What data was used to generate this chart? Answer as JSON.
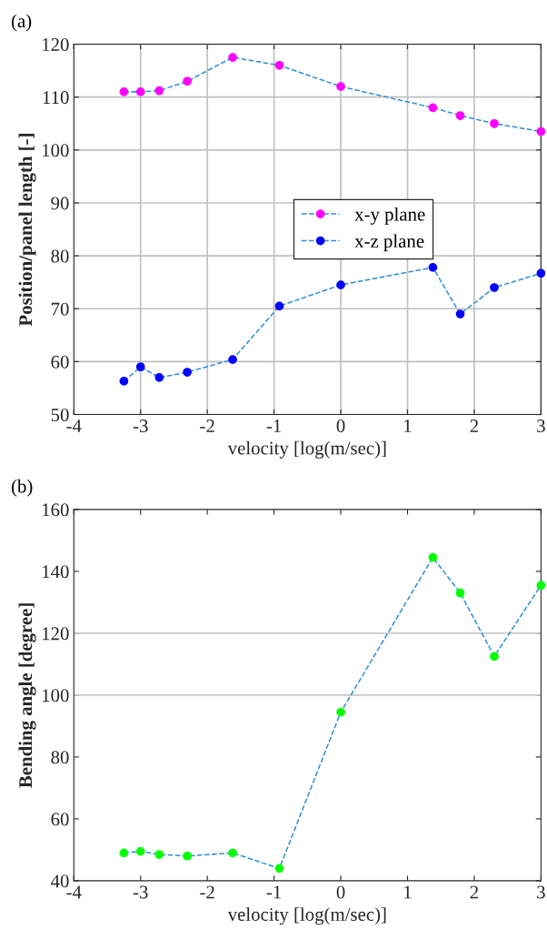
{
  "chart_data": [
    {
      "type": "line",
      "annotations": [
        "(a)"
      ],
      "xlabel": "velocity [log(m/sec)]",
      "ylabel": "Position/panel length [-]",
      "xlim": [
        -4,
        3
      ],
      "xticks": [
        -4,
        -3,
        -2,
        -1,
        0,
        1,
        2,
        3
      ],
      "ylim": [
        50,
        120
      ],
      "yticks": [
        50,
        60,
        70,
        80,
        90,
        100,
        110,
        120
      ],
      "grid": true,
      "legend": "center",
      "marker": "circle",
      "line_style": "dashed",
      "series": [
        {
          "name": "x-y plane",
          "color": "#ff00ff",
          "x": [
            -3.25,
            -3,
            -2.72,
            -2.3,
            -1.62,
            -0.92,
            0,
            1.38,
            1.79,
            2.3,
            3
          ],
          "values": [
            111,
            111,
            111.2,
            113,
            117.5,
            116,
            112,
            108,
            106.5,
            105,
            103.5
          ]
        },
        {
          "name": "x-z plane",
          "color": "#0000ff",
          "x": [
            -3.25,
            -3,
            -2.72,
            -2.3,
            -1.62,
            -0.92,
            0,
            1.38,
            1.79,
            2.3,
            3
          ],
          "values": [
            56.3,
            59,
            57,
            58,
            60.4,
            70.5,
            74.5,
            77.8,
            69,
            74,
            76.7
          ]
        }
      ]
    },
    {
      "type": "line",
      "annotations": [
        "(b)"
      ],
      "xlabel": "velocity [log(m/sec)]",
      "ylabel": "Bending angle [degree]",
      "xlim": [
        -4,
        3
      ],
      "xticks": [
        -4,
        -3,
        -2,
        -1,
        0,
        1,
        2,
        3
      ],
      "ylim": [
        40,
        160
      ],
      "yticks": [
        40,
        60,
        80,
        100,
        120,
        140,
        160
      ],
      "marker": "circle",
      "line_style": "dashed",
      "ref_lines": [
        {
          "axis": "y",
          "value": 100,
          "color": "#c8c8c8"
        },
        {
          "axis": "y",
          "value": 120,
          "color": "#c8c8c8"
        }
      ],
      "series": [
        {
          "color": "#00ff00",
          "x": [
            -3.25,
            -3,
            -2.72,
            -2.3,
            -1.62,
            -0.92,
            0,
            1.38,
            1.79,
            2.3,
            3
          ],
          "values": [
            49,
            49.5,
            48.5,
            48,
            49,
            44,
            94.5,
            144.5,
            133,
            112.5,
            135.5
          ]
        }
      ]
    }
  ]
}
